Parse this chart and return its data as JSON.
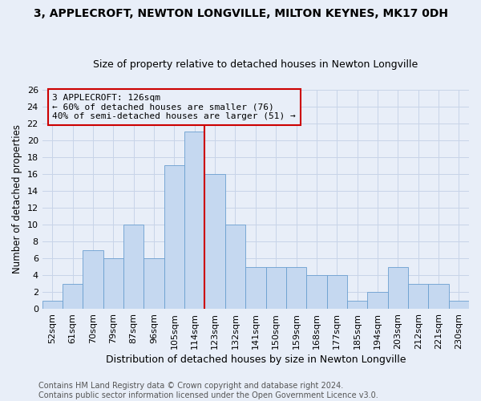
{
  "title": "3, APPLECROFT, NEWTON LONGVILLE, MILTON KEYNES, MK17 0DH",
  "subtitle": "Size of property relative to detached houses in Newton Longville",
  "xlabel": "Distribution of detached houses by size in Newton Longville",
  "ylabel": "Number of detached properties",
  "footnote1": "Contains HM Land Registry data © Crown copyright and database right 2024.",
  "footnote2": "Contains public sector information licensed under the Open Government Licence v3.0.",
  "categories": [
    "52sqm",
    "61sqm",
    "70sqm",
    "79sqm",
    "87sqm",
    "96sqm",
    "105sqm",
    "114sqm",
    "123sqm",
    "132sqm",
    "141sqm",
    "150sqm",
    "159sqm",
    "168sqm",
    "177sqm",
    "185sqm",
    "194sqm",
    "203sqm",
    "212sqm",
    "221sqm",
    "230sqm"
  ],
  "values": [
    1,
    3,
    7,
    6,
    10,
    6,
    17,
    21,
    16,
    10,
    5,
    5,
    5,
    4,
    4,
    1,
    2,
    5,
    3,
    3,
    1
  ],
  "bar_color": "#c5d8f0",
  "bar_edge_color": "#6a9fd0",
  "grid_color": "#c8d4e8",
  "background_color": "#e8eef8",
  "vline_color": "#cc0000",
  "vline_index": 8,
  "annotation_line1": "3 APPLECROFT: 126sqm",
  "annotation_line2": "← 60% of detached houses are smaller (76)",
  "annotation_line3": "40% of semi-detached houses are larger (51) →",
  "annotation_box_color": "#cc0000",
  "ylim": [
    0,
    26
  ],
  "yticks": [
    0,
    2,
    4,
    6,
    8,
    10,
    12,
    14,
    16,
    18,
    20,
    22,
    24,
    26
  ],
  "title_fontsize": 10,
  "subtitle_fontsize": 9,
  "xlabel_fontsize": 9,
  "ylabel_fontsize": 8.5,
  "tick_fontsize": 8,
  "annotation_fontsize": 8,
  "footnote_fontsize": 7
}
